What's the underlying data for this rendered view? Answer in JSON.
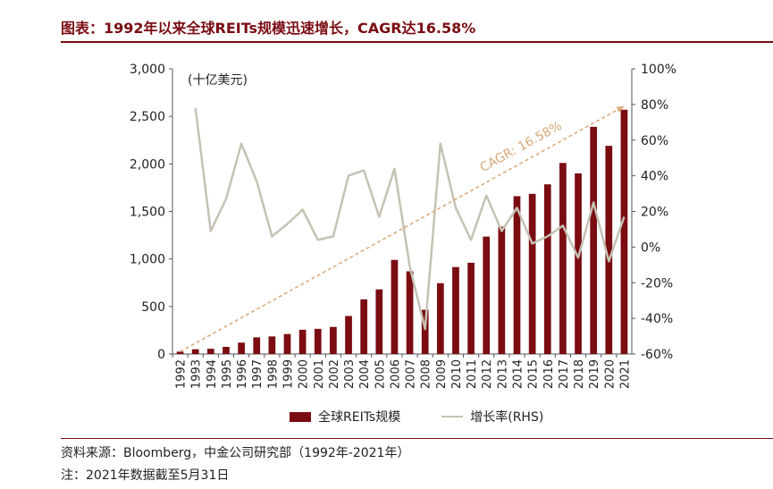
{
  "title": "图表：1992年以来全球REITs规模迅速增长，CAGR达16.58%",
  "source": "资料来源：Bloomberg，中金公司研究部（1992年-2021年）",
  "note": "注：2021年数据截至5月31日",
  "legend": {
    "bar": "全球REITs规模",
    "line": "增长率(RHS)"
  },
  "chart_data": {
    "type": "bar",
    "unit_label": "(十亿美元)",
    "categories": [
      "1992",
      "1993",
      "1994",
      "1995",
      "1996",
      "1997",
      "1998",
      "1999",
      "2000",
      "2001",
      "2002",
      "2003",
      "2004",
      "2005",
      "2006",
      "2007",
      "2008",
      "2009",
      "2010",
      "2011",
      "2012",
      "2013",
      "2014",
      "2015",
      "2016",
      "2017",
      "2018",
      "2019",
      "2020",
      "2021"
    ],
    "series": [
      {
        "name": "全球REITs规模",
        "type": "bar",
        "axis": "left",
        "color": "#7a0c12",
        "values": [
          25,
          50,
          55,
          75,
          120,
          175,
          185,
          210,
          255,
          265,
          285,
          400,
          575,
          680,
          990,
          870,
          465,
          745,
          915,
          960,
          1235,
          1340,
          1660,
          1685,
          1785,
          2010,
          1900,
          2390,
          2190,
          2570
        ]
      },
      {
        "name": "增长率(RHS)",
        "type": "line",
        "axis": "right",
        "color": "#c5c2b4",
        "values": [
          null,
          78,
          9,
          27,
          58,
          37,
          6,
          13,
          21,
          4,
          6,
          40,
          43,
          17,
          44,
          -11,
          -46,
          58,
          22,
          4,
          29,
          9,
          22,
          2,
          6,
          12,
          -6,
          25,
          -8,
          17
        ]
      }
    ],
    "yleft": {
      "min": 0,
      "max": 3000,
      "ticks": [
        "0",
        "500",
        "1,000",
        "1,500",
        "2,000",
        "2,500",
        "3,000"
      ]
    },
    "yright": {
      "min": -60,
      "max": 100,
      "ticks": [
        "-60%",
        "-40%",
        "-20%",
        "0%",
        "20%",
        "40%",
        "60%",
        "80%",
        "100%"
      ]
    },
    "annotation": {
      "text": "CAGR: 16.58%",
      "color": "#d9a878"
    }
  }
}
